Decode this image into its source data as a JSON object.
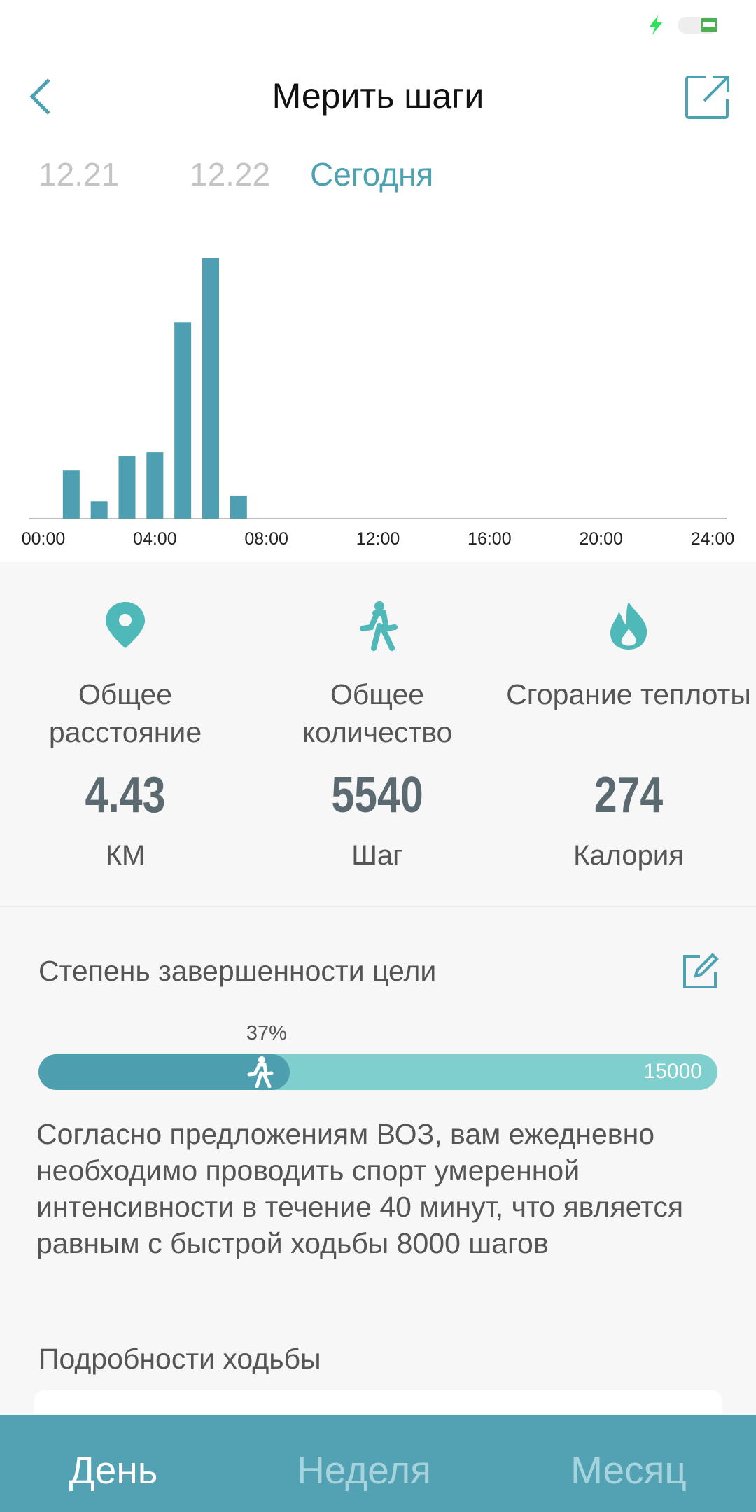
{
  "header": {
    "title": "Мерить шаги"
  },
  "date_tabs": [
    "12.21",
    "12.22",
    "Сегодня"
  ],
  "chart_data": {
    "type": "bar",
    "x": [
      1,
      2,
      3,
      4,
      5,
      6,
      7
    ],
    "values": [
      395,
      142,
      514,
      545,
      1612,
      2142,
      190
    ],
    "color": "#4e9fb1",
    "xlim": [
      0,
      24
    ],
    "xticks": [
      {
        "value": 0,
        "label": "00:00"
      },
      {
        "value": 4,
        "label": "04:00"
      },
      {
        "value": 8,
        "label": "08:00"
      },
      {
        "value": 12,
        "label": "12:00"
      },
      {
        "value": 16,
        "label": "16:00"
      },
      {
        "value": 20,
        "label": "20:00"
      },
      {
        "value": 24,
        "label": "24:00"
      }
    ]
  },
  "stats": [
    {
      "label": "Общее расстояние",
      "value": 4.43,
      "unit": "КМ"
    },
    {
      "label": "Общее количество",
      "value": 5540,
      "unit": "Шаг"
    },
    {
      "label": "Сгорание теплоты",
      "value": 274,
      "unit": "Калория"
    }
  ],
  "goal": {
    "title": "Степень завершенности цели",
    "percent": 37,
    "percent_label": "37%",
    "target": 15000
  },
  "advice": "Согласно предложениям ВОЗ, вам ежедневно необходимо проводить спорт умеренной интенсивности в течение 40 минут, что является равным с быстрой ходьбы 8000 шагов",
  "details_title": "Подробности ходьбы",
  "bottom_tabs": [
    "День",
    "Неделя",
    "Месяц"
  ]
}
